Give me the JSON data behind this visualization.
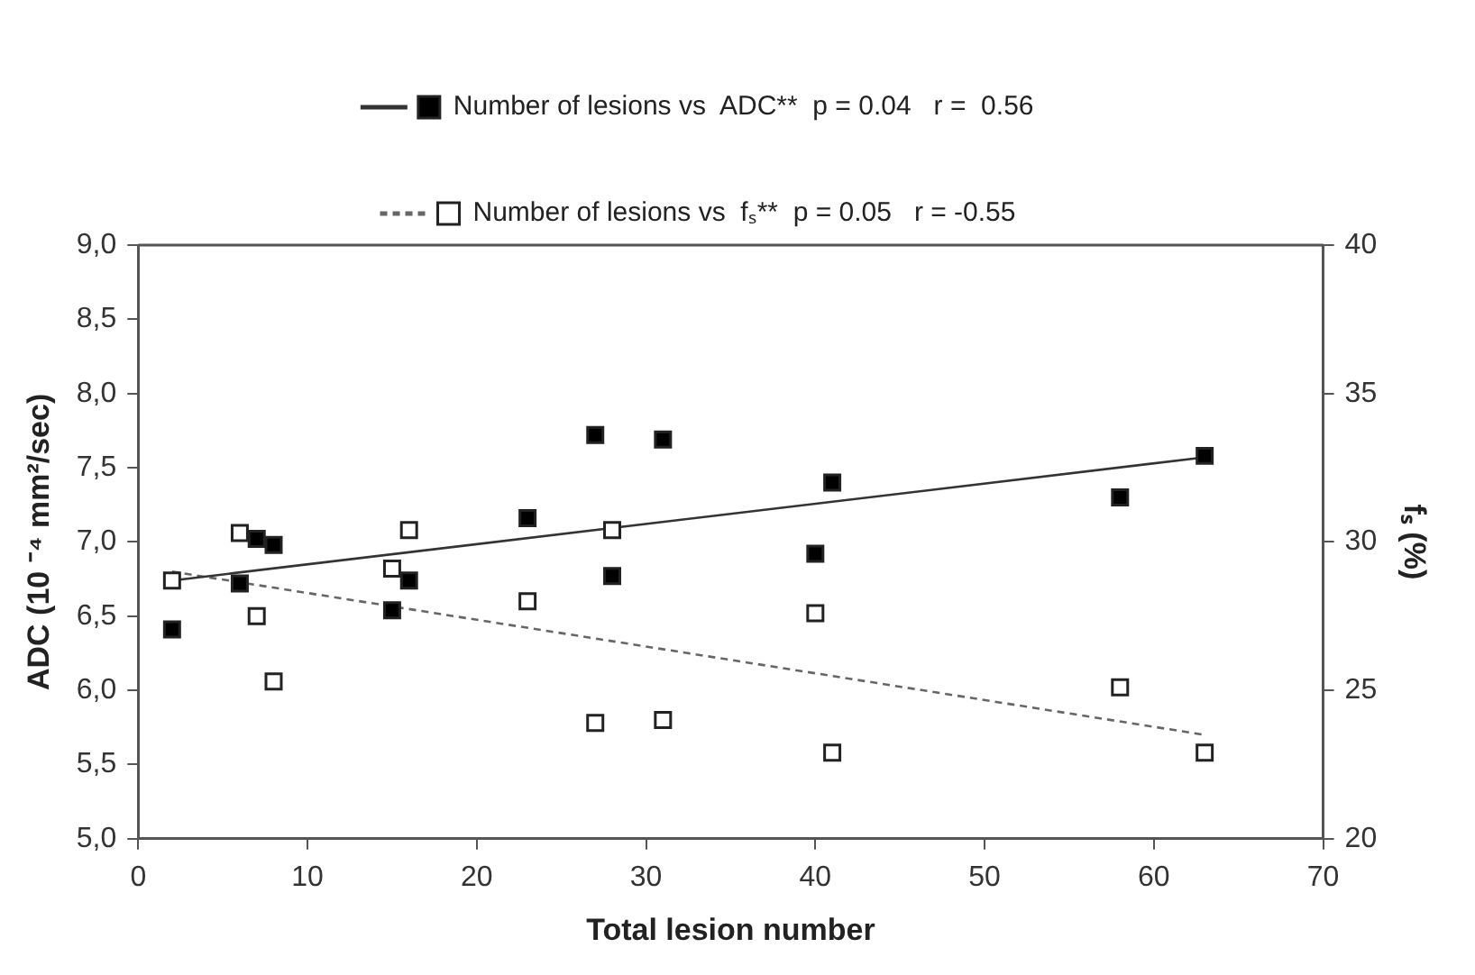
{
  "chart_data": {
    "type": "scatter",
    "xlabel": "Total lesion number",
    "ylabel": "ADC (10 ⁻⁴ mm²/sec)",
    "y2label": "fₛ (%)",
    "xlim": [
      0,
      70
    ],
    "xticks": [
      0,
      10,
      20,
      30,
      40,
      50,
      60,
      70
    ],
    "ylim": [
      5,
      9
    ],
    "yticks": [
      {
        "value": 5,
        "label": "5,0"
      },
      {
        "value": 5.5,
        "label": "5,5"
      },
      {
        "value": 6,
        "label": "6,0"
      },
      {
        "value": 6.5,
        "label": "6,5"
      },
      {
        "value": 7,
        "label": "7,0"
      },
      {
        "value": 7.5,
        "label": "7,5"
      },
      {
        "value": 8,
        "label": "8,0"
      },
      {
        "value": 8.5,
        "label": "8,5"
      },
      {
        "value": 9,
        "label": "9,0"
      }
    ],
    "y2lim": [
      20,
      40
    ],
    "y2ticks": [
      20,
      25,
      30,
      35,
      40
    ],
    "grid": false,
    "legend": "top",
    "series": [
      {
        "name": "Number of lesions vs  ADC**  p = 0.04   r =  0.56",
        "type": "scatter",
        "axis": "y",
        "marker": "square",
        "color": "#000000",
        "x": [
          2,
          6,
          7,
          8,
          15,
          16,
          23,
          27,
          28,
          31,
          40,
          41,
          58,
          63
        ],
        "values": [
          6.41,
          6.72,
          7.02,
          6.98,
          6.54,
          6.74,
          7.16,
          7.72,
          6.77,
          7.69,
          6.92,
          7.4,
          7.3,
          7.58
        ]
      },
      {
        "name": "Number of lesions vs  fₛ**  p = 0.05   r = -0.55",
        "type": "scatter",
        "axis": "y2",
        "marker": "square",
        "color": "#ffffff",
        "x": [
          2,
          6,
          7,
          8,
          15,
          16,
          23,
          27,
          28,
          31,
          40,
          41,
          58,
          63
        ],
        "values": [
          28.7,
          30.3,
          27.5,
          25.3,
          29.1,
          30.4,
          28.0,
          23.9,
          30.4,
          24.0,
          27.6,
          22.9,
          25.1,
          22.9
        ]
      },
      {
        "type": "line",
        "marker": "none",
        "axis": "y",
        "color": "#333333",
        "line_style": "solid",
        "x": [
          2,
          63
        ],
        "values": [
          6.74,
          7.57
        ]
      },
      {
        "type": "line",
        "marker": "none",
        "axis": "y2",
        "color": "#666666",
        "line_style": "dashed",
        "x": [
          2,
          63
        ],
        "values": [
          29.0,
          23.5
        ]
      }
    ]
  }
}
